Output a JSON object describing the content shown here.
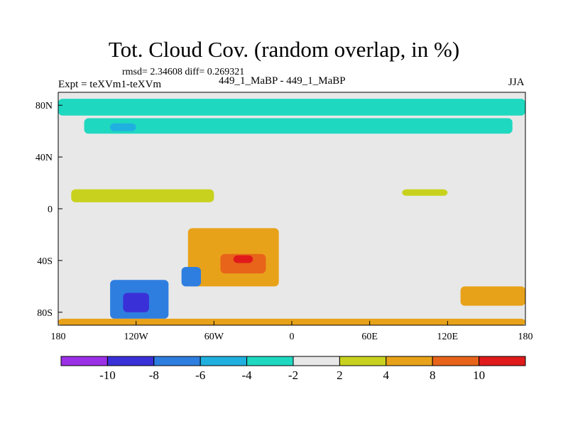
{
  "chart_data": {
    "type": "heatmap",
    "title": "Tot. Cloud Cov. (random overlap, in %)",
    "stats_text": "rmsd= 2.34608 diff= 0.269321",
    "experiment_label": "Expt = teXVm1-teXVm",
    "runs_label": "449_1_MaBP - 449_1_MaBP",
    "season": "JJA",
    "x_ticks": [
      "180",
      "120W",
      "60W",
      "0",
      "60E",
      "120E",
      "180"
    ],
    "x_tick_values": [
      -180,
      -120,
      -60,
      0,
      60,
      120,
      180
    ],
    "y_ticks": [
      "80N",
      "40N",
      "0",
      "40S",
      "80S"
    ],
    "y_tick_values": [
      80,
      40,
      0,
      -40,
      -80
    ],
    "xlim": [
      -180,
      180
    ],
    "ylim": [
      -90,
      90
    ],
    "colorbar": {
      "levels": [
        "-10",
        "-8",
        "-6",
        "-4",
        "-2",
        "2",
        "4",
        "8",
        "10"
      ],
      "colors": [
        "#9b30e6",
        "#3a30d8",
        "#2e7ee0",
        "#20b0e0",
        "#1fd8c0",
        "#e8e8e8",
        "#c8d21e",
        "#e8a21a",
        "#e8641a",
        "#e01a1a"
      ]
    },
    "regions": [
      {
        "name": "arctic-negative-band-1",
        "lon_min": -180,
        "lon_max": 180,
        "lat_min": 72,
        "lat_max": 85,
        "color": "#1fd8c0"
      },
      {
        "name": "arctic-negative-band-2",
        "lon_min": -160,
        "lon_max": 170,
        "lat_min": 58,
        "lat_max": 70,
        "color": "#1fd8c0"
      },
      {
        "name": "north-pacific-patch",
        "lon_min": -140,
        "lon_max": -120,
        "lat_min": 60,
        "lat_max": 66,
        "color": "#20b0e0"
      },
      {
        "name": "tropical-positive-band",
        "lon_min": -170,
        "lon_max": -60,
        "lat_min": 5,
        "lat_max": 15,
        "color": "#c8d21e"
      },
      {
        "name": "tropical-positive-band-east",
        "lon_min": 85,
        "lon_max": 120,
        "lat_min": 10,
        "lat_max": 15,
        "color": "#c8d21e"
      },
      {
        "name": "south-america-positive",
        "lon_min": -80,
        "lon_max": -10,
        "lat_min": -60,
        "lat_max": -15,
        "color": "#e8a21a"
      },
      {
        "name": "south-atlantic-core",
        "lon_min": -55,
        "lon_max": -20,
        "lat_min": -50,
        "lat_max": -35,
        "color": "#e8641a"
      },
      {
        "name": "south-atlantic-max",
        "lon_min": -45,
        "lon_max": -30,
        "lat_min": -42,
        "lat_max": -36,
        "color": "#e01a1a"
      },
      {
        "name": "south-pacific-negative",
        "lon_min": -140,
        "lon_max": -95,
        "lat_min": -85,
        "lat_max": -55,
        "color": "#2e7ee0"
      },
      {
        "name": "south-pacific-negative-core",
        "lon_min": -130,
        "lon_max": -110,
        "lat_min": -80,
        "lat_max": -65,
        "color": "#3a30d8"
      },
      {
        "name": "drake-passage-negative",
        "lon_min": -85,
        "lon_max": -70,
        "lat_min": -60,
        "lat_max": -45,
        "color": "#2e7ee0"
      },
      {
        "name": "southern-indian-positive",
        "lon_min": 130,
        "lon_max": 180,
        "lat_min": -75,
        "lat_max": -60,
        "color": "#e8a21a"
      },
      {
        "name": "antarctic-positive-strip",
        "lon_min": -180,
        "lon_max": 180,
        "lat_min": -90,
        "lat_max": -85,
        "color": "#e8a21a"
      }
    ]
  }
}
